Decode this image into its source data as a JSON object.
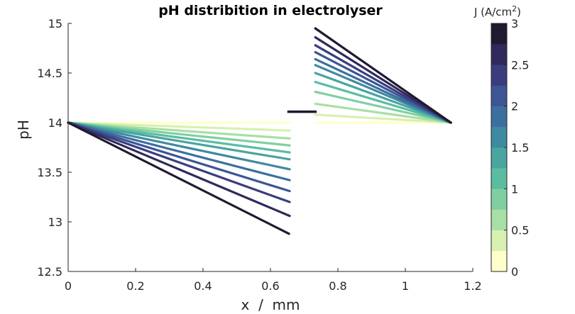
{
  "chart_data": {
    "type": "line",
    "title": "pH distribition in electrolyser",
    "xlabel": "x  /  mm",
    "ylabel": "pH",
    "xlim": [
      0,
      1.2
    ],
    "ylim": [
      12.5,
      15
    ],
    "xticks": [
      "0",
      "0.2",
      "0.4",
      "0.6",
      "0.8",
      "1",
      "1.2"
    ],
    "yticks": [
      "12.5",
      "13",
      "13.5",
      "14",
      "14.5",
      "15"
    ],
    "grid": false,
    "colorbar": {
      "label_prefix": "J (A/cm",
      "label_sup": "2",
      "label_suffix": ")",
      "range": [
        0,
        3
      ],
      "ticks": [
        "0",
        "0.5",
        "1",
        "1.5",
        "2",
        "2.5",
        "3"
      ],
      "colors": [
        "#ffffcc",
        "#d8f0b0",
        "#a8dfa4",
        "#80cfa2",
        "#5bbca2",
        "#4aa4a0",
        "#3f8aa0",
        "#3c6f9e",
        "#3c5594",
        "#3a3d7d",
        "#2f2a5b",
        "#20192f"
      ]
    },
    "series_colors": [
      "#ffffcc",
      "#d8f0b0",
      "#a8dfa4",
      "#80cfa2",
      "#5bbca2",
      "#4aa4a0",
      "#3f8aa0",
      "#3c6f9e",
      "#3c5594",
      "#3a3d7d",
      "#2f2a5b",
      "#20192f"
    ],
    "series": [
      {
        "J": 0.0,
        "left": [
          [
            0,
            14.0
          ],
          [
            0.657,
            14.0
          ]
        ],
        "right": [
          [
            0.733,
            14.0
          ],
          [
            1.135,
            14.0
          ]
        ]
      },
      {
        "J": 0.273,
        "left": [
          [
            0,
            14.0
          ],
          [
            0.657,
            13.92
          ]
        ],
        "right": [
          [
            0.733,
            14.08
          ],
          [
            1.135,
            14.0
          ]
        ]
      },
      {
        "J": 0.545,
        "left": [
          [
            0,
            14.0
          ],
          [
            0.657,
            13.84
          ]
        ],
        "right": [
          [
            0.733,
            14.19
          ],
          [
            1.135,
            14.0
          ]
        ]
      },
      {
        "J": 0.818,
        "left": [
          [
            0,
            14.0
          ],
          [
            0.657,
            13.77
          ]
        ],
        "right": [
          [
            0.733,
            14.31
          ],
          [
            1.135,
            14.0
          ]
        ]
      },
      {
        "J": 1.091,
        "left": [
          [
            0,
            14.0
          ],
          [
            0.657,
            13.7
          ]
        ],
        "right": [
          [
            0.733,
            14.41
          ],
          [
            1.135,
            14.0
          ]
        ]
      },
      {
        "J": 1.364,
        "left": [
          [
            0,
            14.0
          ],
          [
            0.657,
            13.63
          ]
        ],
        "right": [
          [
            0.733,
            14.5
          ],
          [
            1.135,
            14.0
          ]
        ]
      },
      {
        "J": 1.636,
        "left": [
          [
            0,
            14.0
          ],
          [
            0.657,
            13.53
          ]
        ],
        "right": [
          [
            0.733,
            14.58
          ],
          [
            1.135,
            14.0
          ]
        ]
      },
      {
        "J": 1.909,
        "left": [
          [
            0,
            14.0
          ],
          [
            0.657,
            13.42
          ]
        ],
        "right": [
          [
            0.733,
            14.64
          ],
          [
            1.135,
            14.0
          ]
        ]
      },
      {
        "J": 2.182,
        "left": [
          [
            0,
            14.0
          ],
          [
            0.657,
            13.31
          ]
        ],
        "right": [
          [
            0.733,
            14.71
          ],
          [
            1.135,
            14.0
          ]
        ]
      },
      {
        "J": 2.455,
        "left": [
          [
            0,
            14.0
          ],
          [
            0.657,
            13.2
          ]
        ],
        "right": [
          [
            0.733,
            14.78
          ],
          [
            1.135,
            14.0
          ]
        ]
      },
      {
        "J": 2.727,
        "left": [
          [
            0,
            14.0
          ],
          [
            0.657,
            13.06
          ]
        ],
        "right": [
          [
            0.733,
            14.86
          ],
          [
            1.135,
            14.0
          ]
        ]
      },
      {
        "J": 3.0,
        "left": [
          [
            0,
            14.0
          ],
          [
            0.655,
            12.88
          ]
        ],
        "right": [
          [
            0.733,
            14.95
          ],
          [
            1.135,
            14.0
          ]
        ]
      }
    ],
    "annotations": [
      {
        "type": "segment",
        "points": [
          [
            0.65,
            14.11
          ],
          [
            0.737,
            14.11
          ]
        ],
        "color": "#20192f"
      }
    ]
  }
}
